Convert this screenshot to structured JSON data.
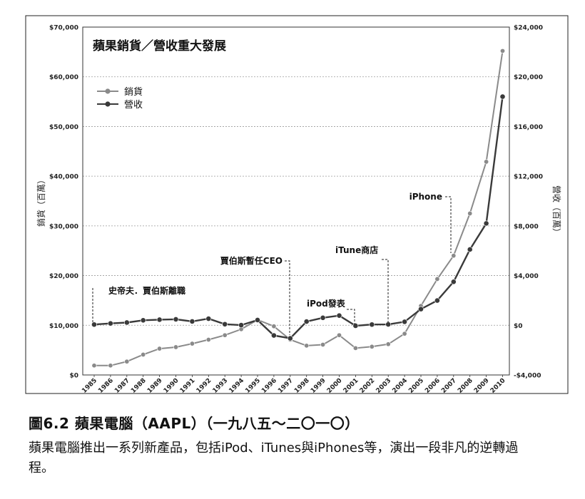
{
  "chart_data": {
    "type": "line",
    "title": "蘋果銷貨／營收重大發展",
    "categories": [
      "1985",
      "1986",
      "1987",
      "1988",
      "1989",
      "1990",
      "1991",
      "1992",
      "1993",
      "1994",
      "1995",
      "1996",
      "1997",
      "1998",
      "1999",
      "2000",
      "2001",
      "2002",
      "2003",
      "2004",
      "2005",
      "2006",
      "2007",
      "2008",
      "2009",
      "2010"
    ],
    "left_axis": {
      "label": "銷貨（百萬）",
      "range": [
        0,
        70000
      ],
      "ticks": [
        {
          "value": 0,
          "label": "$0"
        },
        {
          "value": 10000,
          "label": "$10,000"
        },
        {
          "value": 20000,
          "label": "$20,000"
        },
        {
          "value": 30000,
          "label": "$30,000"
        },
        {
          "value": 40000,
          "label": "$40,000"
        },
        {
          "value": 50000,
          "label": "$50,000"
        },
        {
          "value": 60000,
          "label": "$60,000"
        },
        {
          "value": 70000,
          "label": "$70,000"
        }
      ]
    },
    "right_axis": {
      "label": "營收（百萬）",
      "range": [
        -4000,
        24000
      ],
      "ticks": [
        {
          "value": -4000,
          "label": "-$4,000"
        },
        {
          "value": 0,
          "label": "$0"
        },
        {
          "value": 4000,
          "label": "$4,000"
        },
        {
          "value": 8000,
          "label": "$8,000"
        },
        {
          "value": 12000,
          "label": "$12,000"
        },
        {
          "value": 16000,
          "label": "$16,000"
        },
        {
          "value": 20000,
          "label": "$20,000"
        },
        {
          "value": 24000,
          "label": "$24,000"
        }
      ]
    },
    "series": [
      {
        "name": "銷貨",
        "axis": "left",
        "color": "#8a8a8a",
        "values": [
          1900,
          1900,
          2700,
          4100,
          5300,
          5600,
          6300,
          7100,
          8000,
          9200,
          11100,
          9800,
          7100,
          5900,
          6100,
          8000,
          5400,
          5700,
          6200,
          8300,
          13900,
          19300,
          24000,
          32500,
          42900,
          65200
        ]
      },
      {
        "name": "營收",
        "axis": "right",
        "color": "#3a3a3a",
        "values": [
          60,
          150,
          220,
          400,
          450,
          480,
          310,
          530,
          87,
          10,
          420,
          -820,
          -1050,
          300,
          600,
          780,
          -40,
          60,
          70,
          280,
          1300,
          1990,
          3500,
          6100,
          8200,
          18400
        ]
      }
    ],
    "annotations": [
      {
        "text": "史帝夫．賈伯斯離職",
        "x": "1985"
      },
      {
        "text": "賈伯斯暫任CEO",
        "x": "1997"
      },
      {
        "text": "iPod發表",
        "x": "2001"
      },
      {
        "text": "iTune商店",
        "x": "2003"
      },
      {
        "text": "iPhone",
        "x": "2007"
      }
    ],
    "legend": "top-left",
    "grid": "horizontal dashed"
  },
  "figure": {
    "title": "圖6.2 蘋果電腦（AAPL）（一九八五～二〇一〇）",
    "caption": "蘋果電腦推出一系列新產品，包括iPod、iTunes與iPhones等，演出一段非凡的逆轉過程。"
  }
}
